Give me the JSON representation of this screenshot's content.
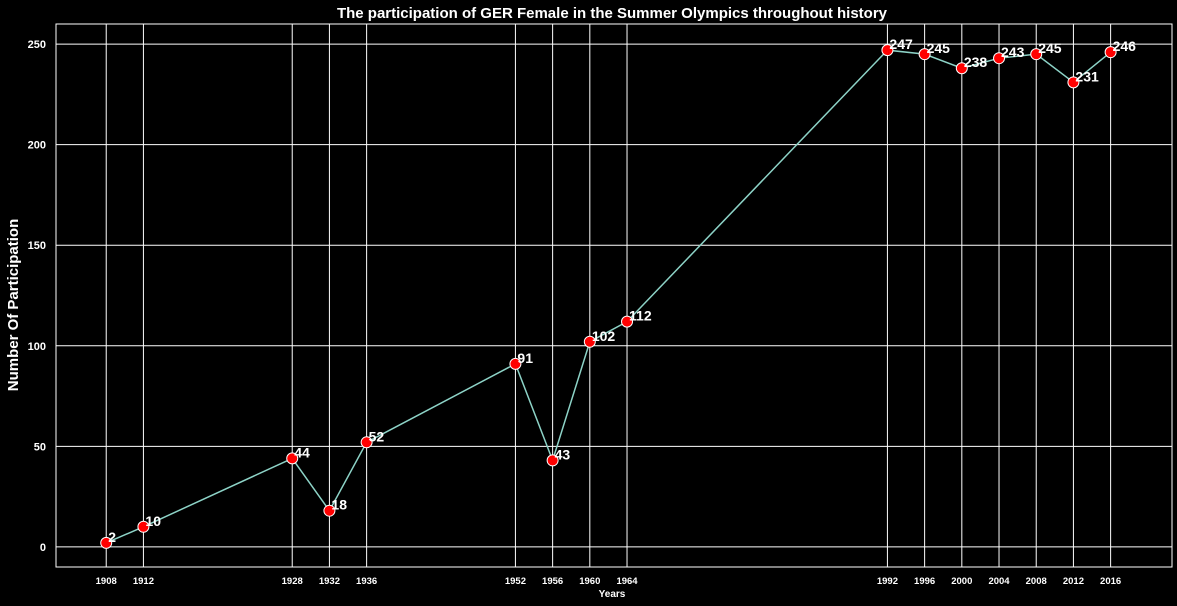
{
  "chart_data": {
    "type": "line",
    "title": "The participation of GER Female in the Summer Olympics throughout history",
    "xlabel": "Years",
    "ylabel": "Number Of Participation",
    "x": [
      1908,
      1912,
      1928,
      1932,
      1936,
      1952,
      1956,
      1960,
      1964,
      1992,
      1996,
      2000,
      2004,
      2008,
      2012,
      2016
    ],
    "x_tick_labels": [
      "1908",
      "1912",
      "1928",
      "1932",
      "1936",
      "1952",
      "1956",
      "1960",
      "1964",
      "1992",
      "1996",
      "2000",
      "2004",
      "2008",
      "2012",
      "2016"
    ],
    "values": [
      2,
      10,
      44,
      18,
      52,
      91,
      43,
      102,
      112,
      247,
      245,
      238,
      243,
      245,
      231,
      246
    ],
    "data_labels": [
      "2",
      "10",
      "44",
      "18",
      "52",
      "91",
      "43",
      "102",
      "112",
      "247",
      "245",
      "238",
      "243",
      "245",
      "231",
      "246"
    ],
    "y_ticks": [
      0,
      50,
      100,
      150,
      200,
      250
    ],
    "y_tick_labels": [
      "0",
      "50",
      "100",
      "150",
      "200",
      "250"
    ],
    "xlim": [
      1902.6,
      2022.6
    ],
    "ylim": [
      -10,
      260
    ],
    "grid": true,
    "legend": "none",
    "colors": {
      "background": "#000000",
      "line": "#8dd3c7",
      "marker": "#ff0000",
      "marker_edge": "#ffffff",
      "grid": "#ffffff",
      "text": "#ffffff"
    }
  }
}
